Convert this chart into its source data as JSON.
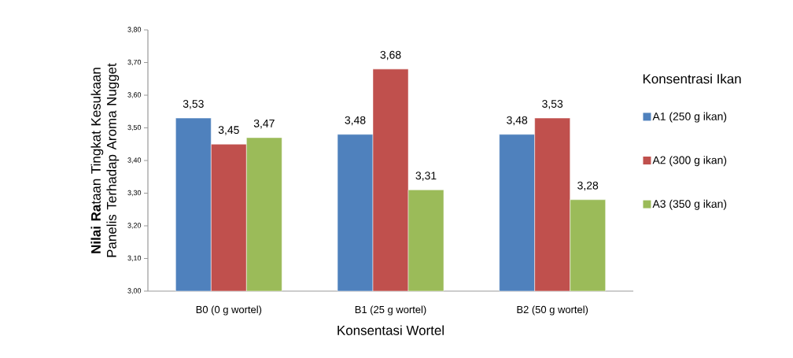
{
  "chart_data": {
    "type": "bar",
    "xlabel": "Konsentasi Wortel",
    "ylabel": "**Nilai Ra**taan Tingkat Kesukaan Panelis Terhadap Aroma Nugget",
    "categories": [
      "B0 (0 g wortel)",
      "B1 (25 g wortel)",
      "B2 (50 g wortel)"
    ],
    "series": [
      {
        "name": "A1 (250 g ikan)",
        "color": "#4f81bd",
        "values": [
          3.53,
          3.48,
          3.48
        ],
        "value_labels": [
          "3,53",
          "3,48",
          "3,48"
        ]
      },
      {
        "name": "A2 (300 g ikan)",
        "color": "#c0504d",
        "values": [
          3.45,
          3.68,
          3.53
        ],
        "value_labels": [
          "3,45",
          "3,68",
          "3,53"
        ]
      },
      {
        "name": "A3 (350 g ikan)",
        "color": "#9bbb59",
        "values": [
          3.47,
          3.31,
          3.28
        ],
        "value_labels": [
          "3,47",
          "3,31",
          "3,28"
        ]
      }
    ],
    "ylim": [
      3.0,
      3.8
    ],
    "yticks": [
      {
        "value": 3.0,
        "label": "3,00"
      },
      {
        "value": 3.1,
        "label": "3,10"
      },
      {
        "value": 3.2,
        "label": "3,20"
      },
      {
        "value": 3.3,
        "label": "3,30"
      },
      {
        "value": 3.4,
        "label": "3,40"
      },
      {
        "value": 3.5,
        "label": "3,50"
      },
      {
        "value": 3.6,
        "label": "3,60"
      },
      {
        "value": 3.7,
        "label": "3,70"
      },
      {
        "value": 3.8,
        "label": "3,80"
      }
    ],
    "legend": "right",
    "legend_title": "Konsentrasi Ikan"
  }
}
